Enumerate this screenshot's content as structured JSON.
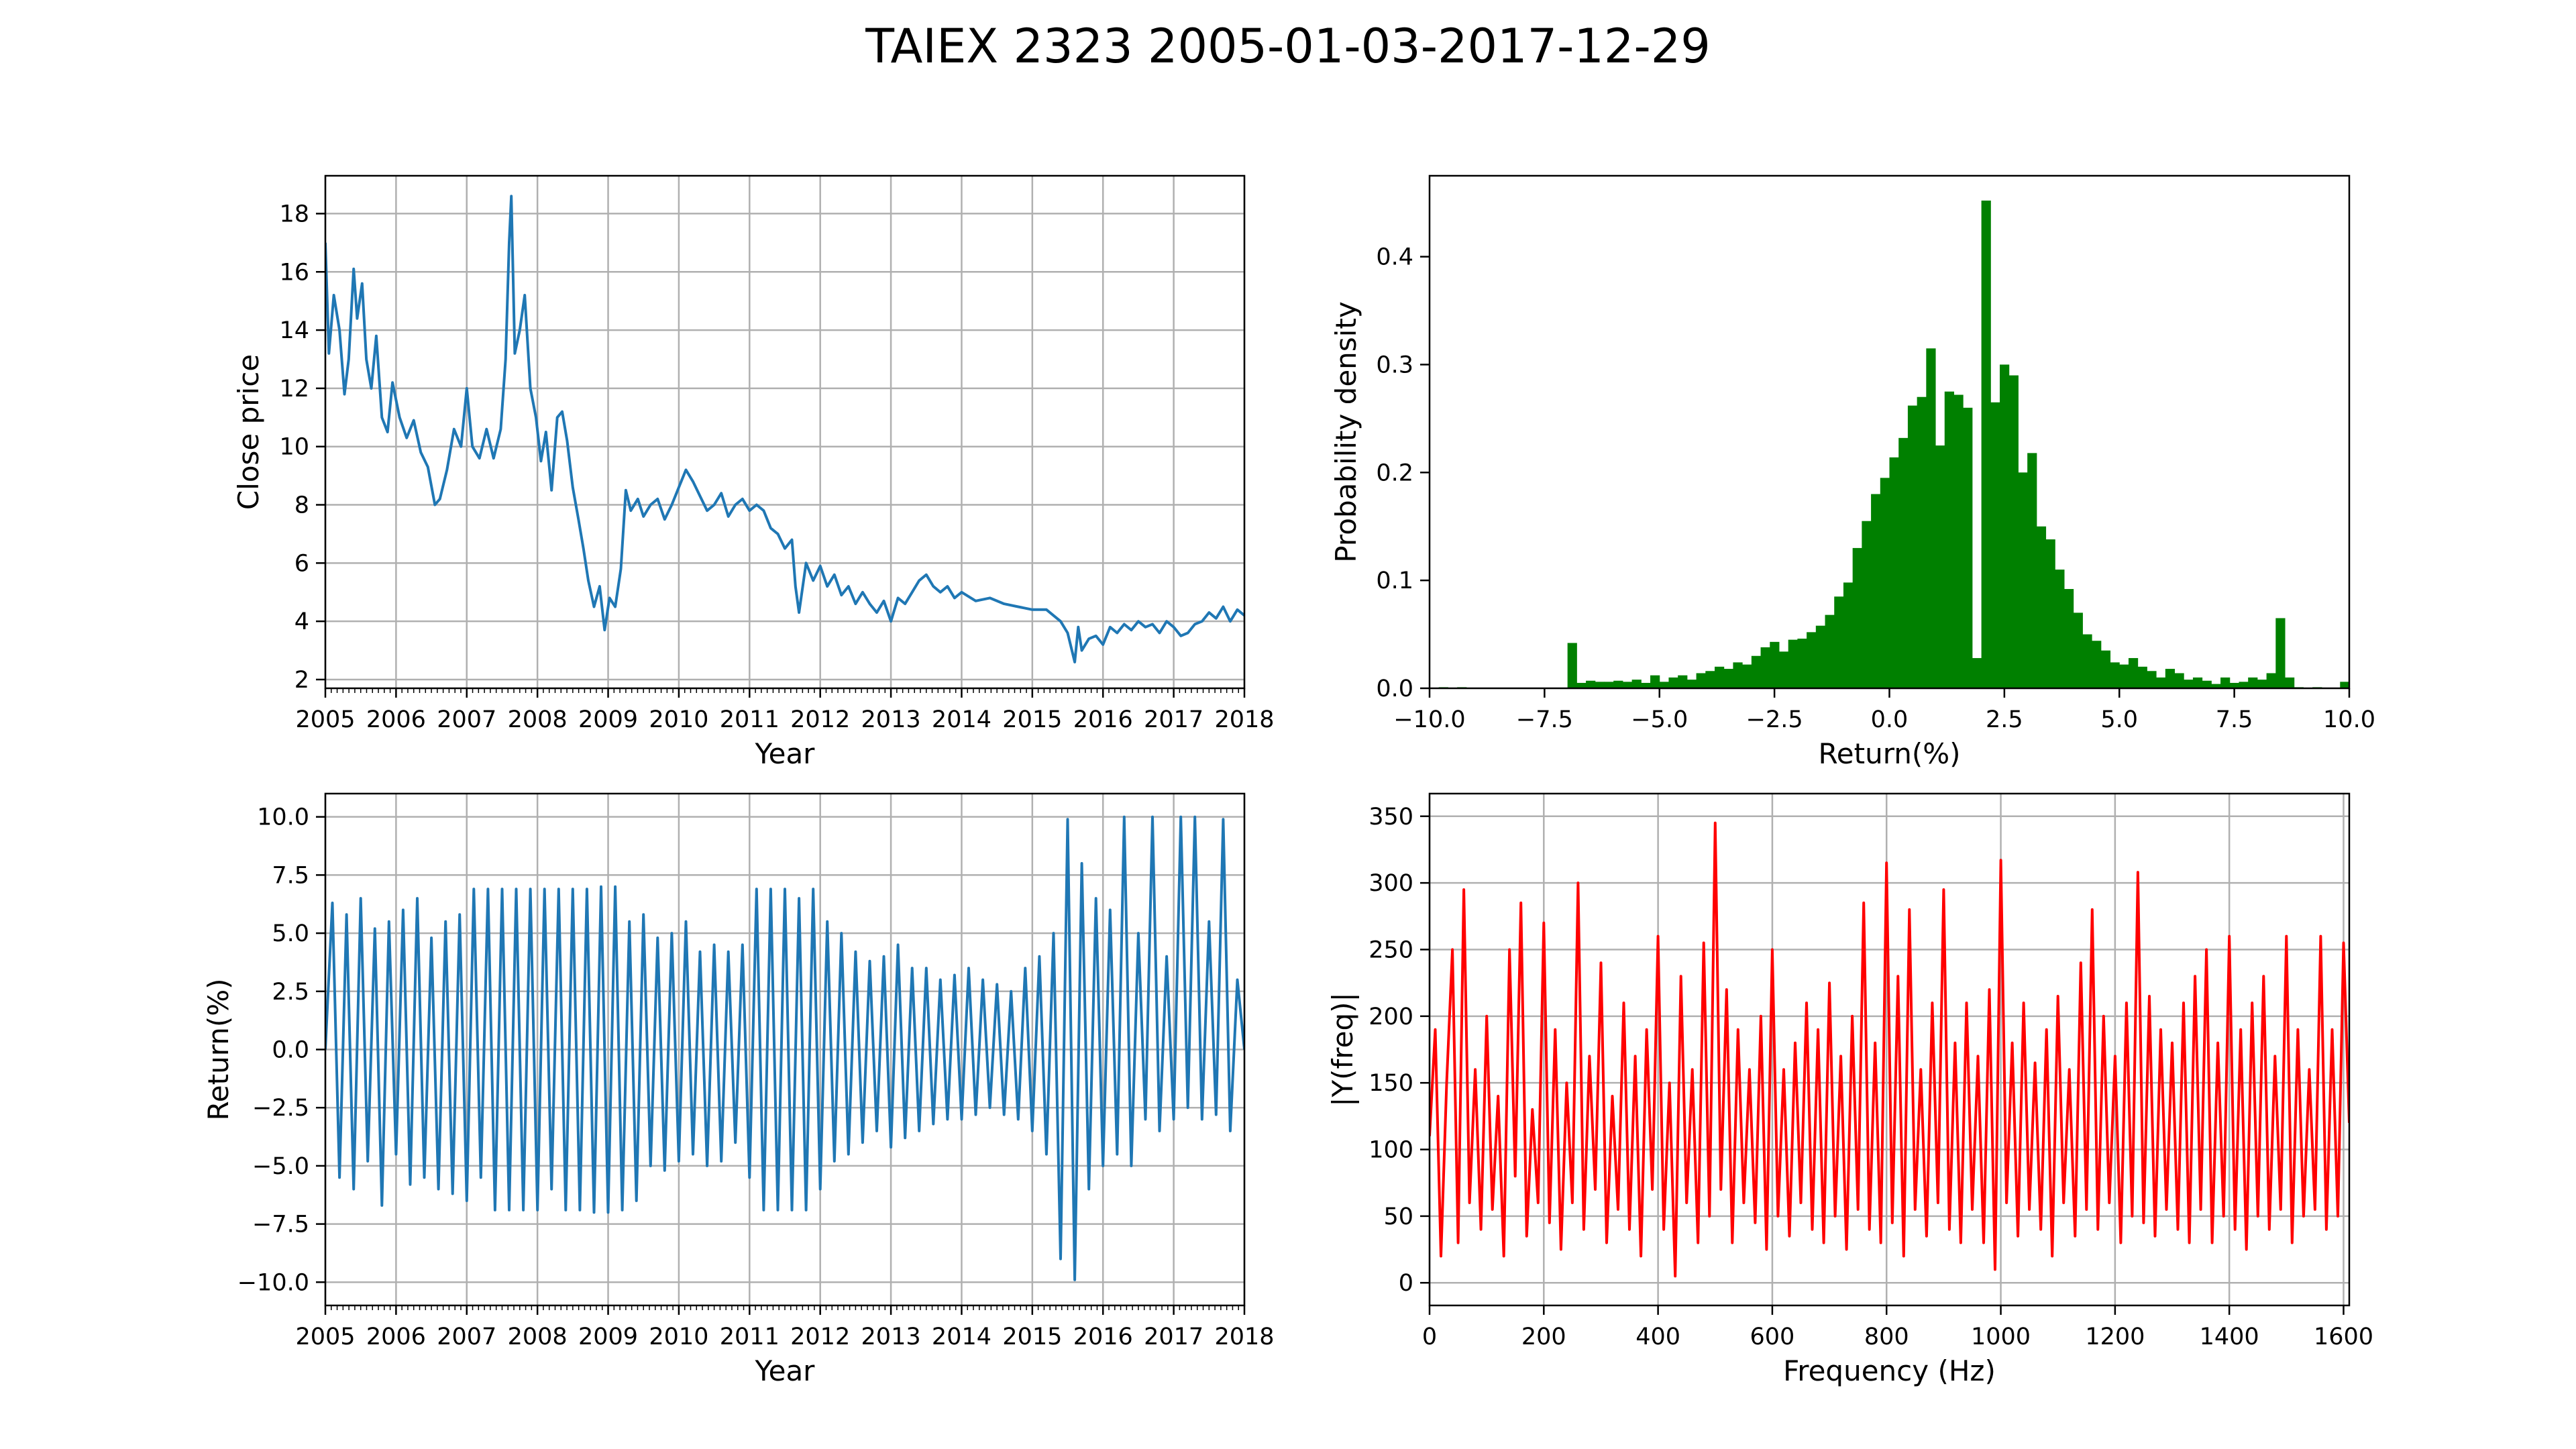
{
  "figure": {
    "title": "TAIEX 2323 2005-01-03-2017-12-29"
  },
  "chart_data": [
    {
      "id": "close",
      "type": "line",
      "xlabel": "Year",
      "ylabel": "Close price",
      "xlim": [
        2005,
        2018
      ],
      "ylim": [
        1.7,
        19.3
      ],
      "xticks": [
        2005,
        2006,
        2007,
        2008,
        2009,
        2010,
        2011,
        2012,
        2013,
        2014,
        2015,
        2016,
        2017,
        2018
      ],
      "yticks": [
        2,
        4,
        6,
        8,
        10,
        12,
        14,
        16,
        18
      ],
      "grid": true,
      "color": "#1f77b4",
      "x": [
        2005.0,
        2005.05,
        2005.12,
        2005.2,
        2005.27,
        2005.33,
        2005.4,
        2005.45,
        2005.52,
        2005.58,
        2005.65,
        2005.72,
        2005.8,
        2005.88,
        2005.95,
        2006.05,
        2006.15,
        2006.25,
        2006.35,
        2006.45,
        2006.55,
        2006.62,
        2006.72,
        2006.82,
        2006.92,
        2007.0,
        2007.08,
        2007.18,
        2007.28,
        2007.38,
        2007.48,
        2007.55,
        2007.6,
        2007.63,
        2007.68,
        2007.75,
        2007.82,
        2007.9,
        2007.98,
        2008.05,
        2008.12,
        2008.2,
        2008.28,
        2008.35,
        2008.42,
        2008.5,
        2008.58,
        2008.65,
        2008.72,
        2008.8,
        2008.88,
        2008.95,
        2009.02,
        2009.1,
        2009.18,
        2009.25,
        2009.32,
        2009.42,
        2009.5,
        2009.6,
        2009.7,
        2009.8,
        2009.9,
        2010.0,
        2010.1,
        2010.2,
        2010.3,
        2010.4,
        2010.5,
        2010.6,
        2010.7,
        2010.8,
        2010.9,
        2011.0,
        2011.1,
        2011.2,
        2011.3,
        2011.4,
        2011.5,
        2011.6,
        2011.65,
        2011.7,
        2011.8,
        2011.9,
        2012.0,
        2012.1,
        2012.2,
        2012.3,
        2012.4,
        2012.5,
        2012.6,
        2012.7,
        2012.8,
        2012.9,
        2013.0,
        2013.1,
        2013.2,
        2013.3,
        2013.4,
        2013.5,
        2013.6,
        2013.7,
        2013.8,
        2013.9,
        2014.0,
        2014.2,
        2014.4,
        2014.6,
        2014.8,
        2015.0,
        2015.2,
        2015.4,
        2015.5,
        2015.6,
        2015.65,
        2015.7,
        2015.8,
        2015.9,
        2016.0,
        2016.1,
        2016.2,
        2016.3,
        2016.4,
        2016.5,
        2016.6,
        2016.7,
        2016.8,
        2016.9,
        2017.0,
        2017.1,
        2017.2,
        2017.3,
        2017.4,
        2017.5,
        2017.6,
        2017.7,
        2017.8,
        2017.9,
        2018.0
      ],
      "y": [
        17.0,
        13.2,
        15.2,
        14.0,
        11.8,
        13.0,
        16.1,
        14.4,
        15.6,
        13.0,
        12.0,
        13.8,
        11.0,
        10.5,
        12.2,
        11.0,
        10.3,
        10.9,
        9.8,
        9.3,
        8.0,
        8.2,
        9.2,
        10.6,
        10.0,
        12.0,
        10.0,
        9.6,
        10.6,
        9.6,
        10.6,
        13.0,
        17.0,
        18.6,
        13.2,
        14.0,
        15.2,
        12.0,
        11.0,
        9.5,
        10.5,
        8.5,
        11.0,
        11.2,
        10.2,
        8.6,
        7.5,
        6.5,
        5.4,
        4.5,
        5.2,
        3.7,
        4.8,
        4.5,
        5.8,
        8.5,
        7.8,
        8.2,
        7.6,
        8.0,
        8.2,
        7.5,
        8.0,
        8.6,
        9.2,
        8.8,
        8.3,
        7.8,
        8.0,
        8.4,
        7.6,
        8.0,
        8.2,
        7.8,
        8.0,
        7.8,
        7.2,
        7.0,
        6.5,
        6.8,
        5.2,
        4.3,
        6.0,
        5.4,
        5.9,
        5.2,
        5.6,
        4.9,
        5.2,
        4.6,
        5.0,
        4.6,
        4.3,
        4.7,
        4.0,
        4.8,
        4.6,
        5.0,
        5.4,
        5.6,
        5.2,
        5.0,
        5.2,
        4.8,
        5.0,
        4.7,
        4.8,
        4.6,
        4.5,
        4.4,
        4.4,
        4.0,
        3.6,
        2.6,
        3.8,
        3.0,
        3.4,
        3.5,
        3.2,
        3.8,
        3.6,
        3.9,
        3.7,
        4.0,
        3.8,
        3.9,
        3.6,
        4.0,
        3.8,
        3.5,
        3.6,
        3.9,
        4.0,
        4.3,
        4.1,
        4.5,
        4.0,
        4.4,
        4.2
      ]
    },
    {
      "id": "hist",
      "type": "bar",
      "xlabel": "Return(%)",
      "ylabel": "Probability density",
      "xlim": [
        -10,
        10
      ],
      "ylim": [
        0,
        0.475
      ],
      "xticks": [
        -10.0,
        -7.5,
        -5.0,
        -2.5,
        0.0,
        2.5,
        5.0,
        7.5,
        10.0
      ],
      "yticks": [
        0.0,
        0.1,
        0.2,
        0.3,
        0.4
      ],
      "grid": false,
      "color": "#008000",
      "bin_width": 0.2,
      "bin_start": -10,
      "values": [
        0.0,
        0.001,
        0.0,
        0.001,
        0.0,
        0.0,
        0.0,
        0.0,
        0.0,
        0.0,
        0.0,
        0.0,
        0.0,
        0.0,
        0.0,
        0.042,
        0.005,
        0.007,
        0.006,
        0.006,
        0.007,
        0.006,
        0.008,
        0.005,
        0.012,
        0.006,
        0.01,
        0.012,
        0.008,
        0.014,
        0.016,
        0.02,
        0.018,
        0.024,
        0.022,
        0.03,
        0.038,
        0.043,
        0.034,
        0.045,
        0.046,
        0.052,
        0.058,
        0.068,
        0.085,
        0.098,
        0.13,
        0.155,
        0.18,
        0.195,
        0.214,
        0.232,
        0.262,
        0.27,
        0.315,
        0.225,
        0.275,
        0.272,
        0.26,
        0.028,
        0.452,
        0.265,
        0.3,
        0.29,
        0.2,
        0.218,
        0.15,
        0.138,
        0.11,
        0.092,
        0.07,
        0.05,
        0.044,
        0.035,
        0.024,
        0.022,
        0.028,
        0.02,
        0.016,
        0.01,
        0.018,
        0.014,
        0.008,
        0.01,
        0.007,
        0.004,
        0.01,
        0.005,
        0.006,
        0.01,
        0.008,
        0.014,
        0.065,
        0.01,
        0.001,
        0.0,
        0.001,
        0.0,
        0.0,
        0.006
      ]
    },
    {
      "id": "returns",
      "type": "line",
      "xlabel": "Year",
      "ylabel": "Return(%)",
      "xlim": [
        2005,
        2018
      ],
      "ylim": [
        -11,
        11
      ],
      "xticks": [
        2005,
        2006,
        2007,
        2008,
        2009,
        2010,
        2011,
        2012,
        2013,
        2014,
        2015,
        2016,
        2017,
        2018
      ],
      "yticks": [
        10.0,
        7.5,
        5.0,
        2.5,
        0.0,
        -2.5,
        -5.0,
        -7.5,
        -10.0
      ],
      "grid": true,
      "color": "#1f77b4",
      "x": [
        2005.0,
        2005.1,
        2005.2,
        2005.3,
        2005.4,
        2005.5,
        2005.6,
        2005.7,
        2005.8,
        2005.9,
        2006.0,
        2006.1,
        2006.2,
        2006.3,
        2006.4,
        2006.5,
        2006.6,
        2006.7,
        2006.8,
        2006.9,
        2007.0,
        2007.1,
        2007.2,
        2007.3,
        2007.4,
        2007.5,
        2007.6,
        2007.7,
        2007.8,
        2007.9,
        2008.0,
        2008.1,
        2008.2,
        2008.3,
        2008.4,
        2008.5,
        2008.6,
        2008.7,
        2008.8,
        2008.9,
        2009.0,
        2009.1,
        2009.2,
        2009.3,
        2009.4,
        2009.5,
        2009.6,
        2009.7,
        2009.8,
        2009.9,
        2010.0,
        2010.1,
        2010.2,
        2010.3,
        2010.4,
        2010.5,
        2010.6,
        2010.7,
        2010.8,
        2010.9,
        2011.0,
        2011.1,
        2011.2,
        2011.3,
        2011.4,
        2011.5,
        2011.6,
        2011.7,
        2011.8,
        2011.9,
        2012.0,
        2012.1,
        2012.2,
        2012.3,
        2012.4,
        2012.5,
        2012.6,
        2012.7,
        2012.8,
        2012.9,
        2013.0,
        2013.1,
        2013.2,
        2013.3,
        2013.4,
        2013.5,
        2013.6,
        2013.7,
        2013.8,
        2013.9,
        2014.0,
        2014.1,
        2014.2,
        2014.3,
        2014.4,
        2014.5,
        2014.6,
        2014.7,
        2014.8,
        2014.9,
        2015.0,
        2015.1,
        2015.2,
        2015.3,
        2015.4,
        2015.5,
        2015.6,
        2015.7,
        2015.8,
        2015.9,
        2016.0,
        2016.1,
        2016.2,
        2016.3,
        2016.4,
        2016.5,
        2016.6,
        2016.7,
        2016.8,
        2016.9,
        2017.0,
        2017.1,
        2017.2,
        2017.3,
        2017.4,
        2017.5,
        2017.6,
        2017.7,
        2017.8,
        2017.9,
        2018.0
      ],
      "y": [
        0.0,
        6.3,
        -5.5,
        5.8,
        -6.0,
        6.5,
        -4.8,
        5.2,
        -6.7,
        5.5,
        -4.5,
        6.0,
        -5.8,
        6.5,
        -5.5,
        4.8,
        -6.0,
        5.5,
        -6.2,
        5.8,
        -6.5,
        6.9,
        -5.5,
        6.9,
        -6.9,
        6.9,
        -6.9,
        6.9,
        -6.9,
        6.9,
        -6.9,
        6.9,
        -6.0,
        6.9,
        -6.9,
        6.9,
        -6.9,
        6.9,
        -7.0,
        7.0,
        -7.0,
        7.0,
        -6.9,
        5.5,
        -6.5,
        5.8,
        -5.0,
        4.8,
        -5.2,
        5.0,
        -4.8,
        5.5,
        -4.5,
        4.2,
        -5.0,
        4.5,
        -4.8,
        4.2,
        -4.0,
        4.5,
        -5.5,
        6.9,
        -6.9,
        6.9,
        -6.9,
        6.9,
        -6.9,
        6.5,
        -6.9,
        6.9,
        -6.0,
        5.5,
        -4.8,
        5.0,
        -4.5,
        4.2,
        -4.0,
        3.8,
        -3.5,
        4.0,
        -4.2,
        4.5,
        -3.8,
        3.5,
        -3.5,
        3.5,
        -3.2,
        3.0,
        -3.0,
        3.2,
        -3.0,
        3.5,
        -2.8,
        3.0,
        -2.5,
        2.8,
        -2.8,
        2.5,
        -3.0,
        3.5,
        -3.5,
        4.0,
        -4.5,
        5.0,
        -9.0,
        9.9,
        -9.9,
        8.0,
        -6.0,
        6.5,
        -5.0,
        6.0,
        -4.5,
        10.0,
        -5.0,
        5.0,
        -3.0,
        10.0,
        -3.5,
        4.0,
        -3.0,
        10.0,
        -2.5,
        10.0,
        -3.0,
        5.5,
        -2.8,
        9.9,
        -3.5,
        3.0,
        0.0
      ]
    },
    {
      "id": "fft",
      "type": "line",
      "xlabel": "Frequency (Hz)",
      "ylabel": "|Y(freq)|",
      "xlim": [
        0,
        1610
      ],
      "ylim": [
        -17,
        367
      ],
      "xticks": [
        0,
        200,
        400,
        600,
        800,
        1000,
        1200,
        1400,
        1600
      ],
      "yticks": [
        0,
        50,
        100,
        150,
        200,
        250,
        300,
        350
      ],
      "grid": true,
      "color": "#ff0000",
      "x": [
        0,
        10,
        20,
        30,
        40,
        50,
        60,
        70,
        80,
        90,
        100,
        110,
        120,
        130,
        140,
        150,
        160,
        170,
        180,
        190,
        200,
        210,
        220,
        230,
        240,
        250,
        260,
        270,
        280,
        290,
        300,
        310,
        320,
        330,
        340,
        350,
        360,
        370,
        380,
        390,
        400,
        410,
        420,
        430,
        440,
        450,
        460,
        470,
        480,
        490,
        500,
        510,
        520,
        530,
        540,
        550,
        560,
        570,
        580,
        590,
        600,
        610,
        620,
        630,
        640,
        650,
        660,
        670,
        680,
        690,
        700,
        710,
        720,
        730,
        740,
        750,
        760,
        770,
        780,
        790,
        800,
        810,
        820,
        830,
        840,
        850,
        860,
        870,
        880,
        890,
        900,
        910,
        920,
        930,
        940,
        950,
        960,
        970,
        980,
        990,
        1000,
        1010,
        1020,
        1030,
        1040,
        1050,
        1060,
        1070,
        1080,
        1090,
        1100,
        1110,
        1120,
        1130,
        1140,
        1150,
        1160,
        1170,
        1180,
        1190,
        1200,
        1210,
        1220,
        1230,
        1240,
        1250,
        1260,
        1270,
        1280,
        1290,
        1300,
        1310,
        1320,
        1330,
        1340,
        1350,
        1360,
        1370,
        1380,
        1390,
        1400,
        1410,
        1420,
        1430,
        1440,
        1450,
        1460,
        1470,
        1480,
        1490,
        1500,
        1510,
        1520,
        1530,
        1540,
        1550,
        1560,
        1570,
        1580,
        1590,
        1600,
        1610
      ],
      "y": [
        110,
        190,
        20,
        150,
        250,
        30,
        295,
        60,
        160,
        40,
        200,
        55,
        140,
        20,
        250,
        80,
        285,
        35,
        130,
        60,
        270,
        45,
        190,
        25,
        150,
        60,
        300,
        40,
        170,
        70,
        240,
        30,
        140,
        55,
        210,
        40,
        170,
        20,
        190,
        70,
        260,
        40,
        150,
        5,
        230,
        60,
        160,
        30,
        255,
        50,
        345,
        70,
        220,
        30,
        190,
        60,
        160,
        45,
        200,
        25,
        250,
        50,
        160,
        35,
        180,
        60,
        210,
        40,
        190,
        30,
        225,
        50,
        170,
        25,
        200,
        55,
        285,
        40,
        180,
        30,
        315,
        45,
        230,
        20,
        280,
        55,
        160,
        35,
        210,
        60,
        295,
        40,
        180,
        30,
        210,
        55,
        170,
        30,
        220,
        10,
        317,
        60,
        180,
        35,
        210,
        55,
        165,
        40,
        190,
        20,
        215,
        60,
        160,
        35,
        240,
        55,
        280,
        40,
        200,
        60,
        170,
        30,
        210,
        50,
        308,
        45,
        215,
        35,
        190,
        55,
        180,
        40,
        210,
        30,
        230,
        55,
        250,
        30,
        180,
        50,
        260,
        40,
        190,
        25,
        210,
        50,
        230,
        40,
        170,
        55,
        260,
        30,
        190,
        50,
        160,
        55,
        260,
        40,
        190,
        50,
        255,
        120
      ]
    }
  ]
}
